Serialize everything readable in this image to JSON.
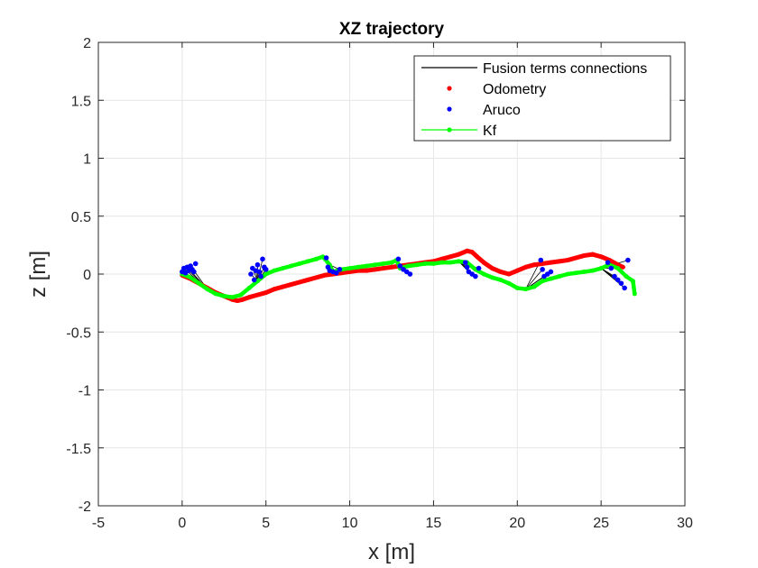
{
  "chart_data": {
    "type": "scatter",
    "title": "XZ trajectory",
    "xlabel": "x [m]",
    "ylabel": "z [m]",
    "xlim": [
      -5,
      30
    ],
    "ylim": [
      -2,
      2
    ],
    "xticks": [
      -5,
      0,
      5,
      10,
      15,
      20,
      25,
      30
    ],
    "yticks": [
      -2,
      -1.5,
      -1,
      -0.5,
      0,
      0.5,
      1,
      1.5,
      2
    ],
    "xtick_labels": [
      "-5",
      "0",
      "5",
      "10",
      "15",
      "20",
      "25",
      "30"
    ],
    "ytick_labels": [
      "-2",
      "-1.5",
      "-1",
      "-0.5",
      "0",
      "0.5",
      "1",
      "1.5",
      "2"
    ],
    "grid": true,
    "legend_position": "top-right",
    "colors": {
      "connections": "#000000",
      "odometry": "#ff0000",
      "aruco": "#0000ff",
      "kf": "#00ff00"
    },
    "legend": [
      {
        "key": "connections",
        "label": "Fusion terms connections",
        "style": "line"
      },
      {
        "key": "odometry",
        "label": "Odometry",
        "style": "dot"
      },
      {
        "key": "aruco",
        "label": "Aruco",
        "style": "dot"
      },
      {
        "key": "kf",
        "label": "Kf",
        "style": "line-dot"
      }
    ],
    "series": [
      {
        "name": "Odometry",
        "key": "odometry",
        "x": [
          0,
          0.5,
          1,
          1.5,
          2,
          2.5,
          3,
          3.3,
          3.6,
          4,
          4.5,
          5,
          5.5,
          6,
          6.5,
          7,
          7.5,
          8,
          8.5,
          9,
          9.5,
          10,
          10.5,
          11,
          11.5,
          12,
          12.5,
          13,
          13.5,
          14,
          14.5,
          15,
          15.5,
          16,
          16.5,
          17,
          17.3,
          17.6,
          18,
          18.5,
          19,
          19.5,
          20,
          20.5,
          21,
          21.5,
          22,
          22.5,
          23,
          23.5,
          24,
          24.5,
          25,
          25.5,
          26,
          26.3
        ],
        "y": [
          -0.01,
          -0.04,
          -0.08,
          -0.12,
          -0.16,
          -0.19,
          -0.22,
          -0.23,
          -0.22,
          -0.2,
          -0.18,
          -0.16,
          -0.13,
          -0.11,
          -0.09,
          -0.07,
          -0.05,
          -0.03,
          -0.01,
          0.0,
          0.01,
          0.02,
          0.03,
          0.03,
          0.04,
          0.05,
          0.06,
          0.07,
          0.08,
          0.09,
          0.1,
          0.11,
          0.13,
          0.15,
          0.17,
          0.2,
          0.19,
          0.15,
          0.1,
          0.05,
          0.02,
          0.0,
          0.03,
          0.06,
          0.08,
          0.09,
          0.1,
          0.11,
          0.12,
          0.14,
          0.16,
          0.17,
          0.15,
          0.12,
          0.08,
          0.06
        ]
      },
      {
        "name": "Kf",
        "key": "kf",
        "x": [
          0,
          0.5,
          1,
          1.5,
          2,
          2.5,
          3,
          3.5,
          4,
          4.5,
          5,
          5.5,
          6,
          6.5,
          7,
          7.5,
          8,
          8.4,
          8.8,
          9,
          9.5,
          10,
          10.5,
          11,
          11.5,
          12,
          12.5,
          12.8,
          13,
          13.5,
          14,
          14.5,
          15,
          15.5,
          16,
          16.5,
          17,
          17.5,
          18,
          18.5,
          19,
          19.5,
          20,
          20.5,
          21,
          21.5,
          22,
          22.5,
          23,
          23.5,
          24,
          24.5,
          25,
          25.5,
          26,
          26.5,
          26.9,
          27
        ],
        "y": [
          0.0,
          -0.03,
          -0.08,
          -0.13,
          -0.17,
          -0.19,
          -0.2,
          -0.18,
          -0.12,
          -0.06,
          0.0,
          0.03,
          0.05,
          0.07,
          0.09,
          0.11,
          0.13,
          0.15,
          0.08,
          0.02,
          0.04,
          0.05,
          0.06,
          0.07,
          0.08,
          0.09,
          0.1,
          0.12,
          0.05,
          0.07,
          0.08,
          0.09,
          0.09,
          0.1,
          0.1,
          0.11,
          0.1,
          0.04,
          0.0,
          -0.03,
          -0.05,
          -0.08,
          -0.12,
          -0.13,
          -0.11,
          -0.06,
          -0.04,
          -0.02,
          0.0,
          0.01,
          0.02,
          0.03,
          0.05,
          0.08,
          0.05,
          -0.02,
          -0.06,
          -0.17
        ]
      },
      {
        "name": "Aruco",
        "key": "aruco",
        "x": [
          0,
          0.1,
          0.2,
          0.3,
          0.4,
          0.5,
          0.6,
          0.7,
          0.8,
          4.1,
          4.2,
          4.3,
          4.4,
          4.5,
          4.6,
          4.7,
          4.8,
          4.9,
          5.0,
          8.6,
          8.7,
          8.8,
          9.0,
          9.2,
          9.4,
          12.9,
          13.0,
          13.2,
          13.4,
          13.6,
          16.9,
          17.0,
          17.1,
          17.3,
          17.5,
          17.7,
          21.4,
          21.5,
          21.6,
          21.8,
          22.0,
          25.4,
          25.6,
          25.8,
          26.0,
          26.2,
          26.4,
          26.6
        ],
        "y": [
          0.02,
          0.05,
          0.01,
          0.06,
          0.03,
          0.07,
          0.04,
          0.02,
          0.09,
          0.0,
          0.05,
          -0.05,
          0.03,
          0.08,
          0.02,
          -0.02,
          0.13,
          0.06,
          0.04,
          0.14,
          0.06,
          0.03,
          0.02,
          0.01,
          0.04,
          0.13,
          0.07,
          0.04,
          0.02,
          0.0,
          0.1,
          0.06,
          0.02,
          0.0,
          -0.02,
          0.05,
          0.12,
          0.04,
          -0.02,
          0.0,
          0.02,
          0.1,
          0.05,
          -0.02,
          -0.05,
          -0.08,
          -0.12,
          0.12
        ]
      }
    ],
    "connections": [
      {
        "kf_index": 3,
        "aruco": [
          0,
          1,
          2,
          3,
          4,
          5
        ]
      },
      {
        "kf_index": 9,
        "aruco": [
          9,
          10,
          11,
          12,
          13,
          14,
          15,
          16,
          17,
          18
        ]
      },
      {
        "kf_index": 18,
        "aruco": [
          19,
          20,
          21,
          22,
          23,
          24
        ]
      },
      {
        "kf_index": 27,
        "aruco": [
          25,
          26,
          27,
          28,
          29
        ]
      },
      {
        "kf_index": 35,
        "aruco": [
          30,
          31,
          32,
          33,
          34,
          35
        ]
      },
      {
        "kf_index": 43,
        "aruco": [
          36,
          37,
          38,
          39,
          40
        ]
      },
      {
        "kf_index": 52,
        "aruco": [
          41,
          42,
          43,
          44,
          45,
          46,
          47
        ]
      }
    ]
  }
}
